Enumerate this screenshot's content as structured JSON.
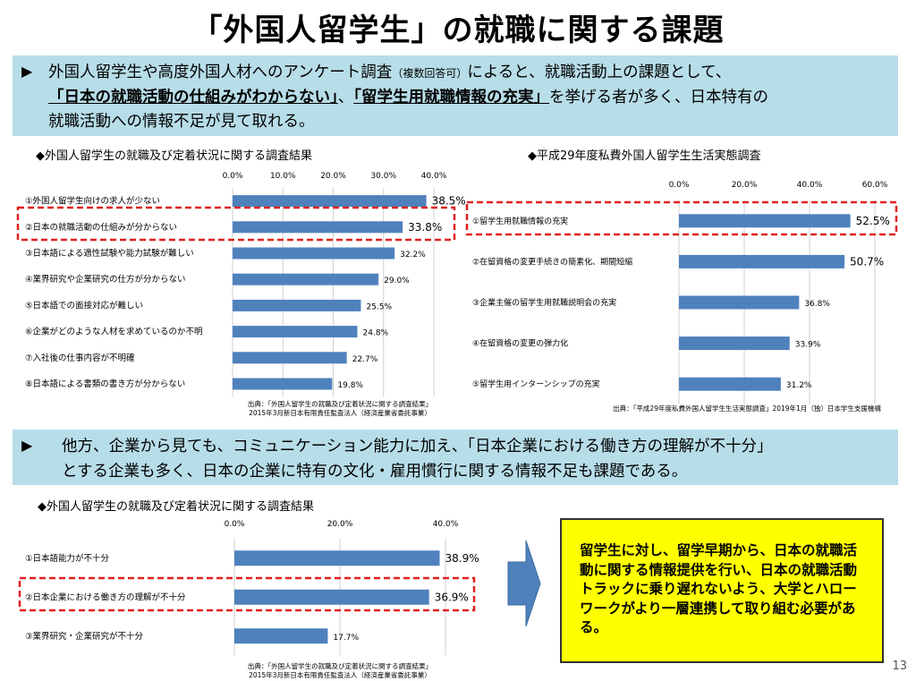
{
  "title": "「外国人留学生」の就職に関する課題",
  "banner1": {
    "bullet": "▶",
    "line1_main": "外国人留学生や高度外国人材へのアンケート調査",
    "line1_paren": "（複数回答可）",
    "line1_tail": "によると、就職活動上の課題として、",
    "line2_emph1": "「日本の就職活動の仕組みがわからない」",
    "line2_sep": "、",
    "line2_emph2": "「留学生用就職情報の充実」",
    "line2_tail": "を挙げる者が多く、日本特有の",
    "line3": "就職活動への情報不足が見て取れる。"
  },
  "banner2": {
    "bullet": "▶",
    "line1": "他方、企業から見ても、コミュニケーション能力に加え、「日本企業における働き方の理解が不十分」",
    "line2": "とする企業も多く、日本の企業に特有の文化・雇用慣行に関する情報不足も課題である。"
  },
  "conclusion": "留学生に対し、留学早期から、日本の就職活動に関する情報提供を行い、日本の就職活動トラックに乗り遅れないよう、大学とハローワークがより一層連携して取り組む必要がある。",
  "page_number": "13",
  "chart_data": [
    {
      "type": "bar",
      "heading": "◆外国人留学生の就職及び定着状況に関する調査結果",
      "categories": [
        "①外国人留学生向けの求人が少ない",
        "②日本の就職活動の仕組みが分からない",
        "③日本語による適性試験や能力試験が難しい",
        "④業界研究や企業研究の仕方が分からない",
        "⑤日本語での面接対応が難しい",
        "⑥企業がどのような人材を求めているのか不明",
        "⑦入社後の仕事内容が不明確",
        "⑧日本語による書類の書き方が分からない"
      ],
      "values": [
        38.5,
        33.8,
        32.2,
        29.0,
        25.5,
        24.8,
        22.7,
        19.8
      ],
      "value_labels": [
        "38.5%",
        "33.8%",
        "32.2%",
        "29.0%",
        "25.5%",
        "24.8%",
        "22.7%",
        "19.8%"
      ],
      "xlim": [
        0,
        40
      ],
      "ticks": [
        "0.0%",
        "10.0%",
        "20.0%",
        "30.0%",
        "40.0%"
      ],
      "highlight_index": 1,
      "source_line1": "出典：「外国人留学生の就職及び定着状況に関する調査結果」",
      "source_line2": "2015年3月新日本有限責任監査法人（経済産業省委託事業）",
      "bar_color": "#4f81bd"
    },
    {
      "type": "bar",
      "heading": "◆平成29年度私費外国人留学生生活実態調査",
      "categories": [
        "①留学生用就職情報の充実",
        "②在留資格の変更手続きの簡素化、期間短縮",
        "③企業主催の留学生用就職説明会の充実",
        "④在留資格の変更の弾力化",
        "⑤留学生用インターンシップの充実"
      ],
      "values": [
        52.5,
        50.7,
        36.8,
        33.9,
        31.2
      ],
      "value_labels": [
        "52.5%",
        "50.7%",
        "36.8%",
        "33.9%",
        "31.2%"
      ],
      "xlim": [
        0,
        60
      ],
      "ticks": [
        "0.0%",
        "20.0%",
        "40.0%",
        "60.0%"
      ],
      "highlight_index": 0,
      "source_line1": "出典：「平成29年度私費外国人留学生生活実態調査」2019年1月（独）日本学生支援機構",
      "source_line2": "",
      "bar_color": "#4f81bd"
    },
    {
      "type": "bar",
      "heading": "◆外国人留学生の就職及び定着状況に関する調査結果",
      "categories": [
        "①日本語能力が不十分",
        "②日本企業における働き方の理解が不十分",
        "③業界研究・企業研究が不十分"
      ],
      "values": [
        38.9,
        36.9,
        17.7
      ],
      "value_labels": [
        "38.9%",
        "36.9%",
        "17.7%"
      ],
      "xlim": [
        0,
        40
      ],
      "ticks": [
        "0.0%",
        "20.0%",
        "40.0%"
      ],
      "highlight_index": 1,
      "source_line1": "出典：「外国人留学生の就職及び定着状況に関する調査結果」",
      "source_line2": "2015年3月新日本有限責任監査法人（経済産業省委託事業）",
      "bar_color": "#4f81bd"
    }
  ],
  "colors": {
    "banner": "#b7dde8",
    "highlight": "#e02020",
    "arrow": "#4f81bd",
    "conclusion_bg": "#ffff00"
  }
}
